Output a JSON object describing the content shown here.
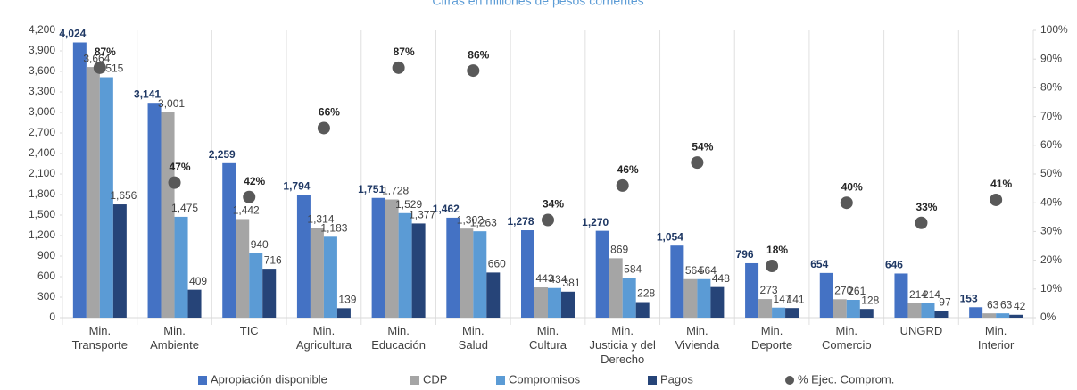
{
  "chart_data": {
    "type": "bar",
    "title": "Cifras en millones de pesos corrientes",
    "categories": [
      "Min.\nTransporte",
      "Min.\nAmbiente",
      "TIC",
      "Min.\nAgricultura",
      "Min.\nEducación",
      "Min.\nSalud",
      "Min.\nCultura",
      "Min.\nJusticia y del\nDerecho",
      "Min.\nVivienda",
      "Min.\nDeporte",
      "Min.\nComercio",
      "UNGRD",
      "Min.\nInterior"
    ],
    "series": [
      {
        "name": "Apropiación disponible",
        "color": "#4472c4",
        "values": [
          4024,
          3141,
          2259,
          1794,
          1751,
          1462,
          1278,
          1270,
          1054,
          796,
          654,
          646,
          153
        ],
        "value_labels": [
          "4,024",
          "3,141",
          "2,259",
          "1,794",
          "1,751",
          "1,462",
          "1,278",
          "1,270",
          "1,054",
          "796",
          "654",
          "646",
          "153"
        ]
      },
      {
        "name": "CDP",
        "color": "#a5a5a5",
        "values": [
          3664,
          3001,
          1442,
          1314,
          1728,
          1302,
          443,
          869,
          564,
          273,
          270,
          214,
          63
        ],
        "value_labels": [
          "3,664",
          "3,001",
          "1,442",
          "1,314",
          "1,728",
          "1,302",
          "443",
          "869",
          "564",
          "273",
          "270",
          "214",
          "63"
        ]
      },
      {
        "name": "Compromisos",
        "color": "#5b9bd5",
        "values": [
          3515,
          1475,
          940,
          1183,
          1529,
          1263,
          434,
          584,
          564,
          147,
          261,
          214,
          63
        ],
        "value_labels": [
          "3,515",
          "1,475",
          "940",
          "1,183",
          "1,529",
          "1,263",
          "434",
          "584",
          "564",
          "147",
          "261",
          "214",
          "63"
        ]
      },
      {
        "name": "Pagos",
        "color": "#264478",
        "values": [
          1656,
          409,
          716,
          139,
          1377,
          660,
          381,
          228,
          448,
          141,
          128,
          97,
          42
        ],
        "value_labels": [
          "1,656",
          "409",
          "716",
          "139",
          "1,377",
          "660",
          "381",
          "228",
          "448",
          "141",
          "128",
          "97",
          "42"
        ]
      },
      {
        "name": "% Ejec. Comprom.",
        "type": "scatter",
        "axis": "y2",
        "color": "#595959",
        "values": [
          87,
          47,
          42,
          66,
          87,
          86,
          34,
          46,
          54,
          18,
          40,
          33,
          41
        ],
        "value_labels": [
          "87%",
          "47%",
          "42%",
          "66%",
          "87%",
          "86%",
          "34%",
          "46%",
          "54%",
          "18%",
          "40%",
          "33%",
          "41%"
        ]
      }
    ],
    "ylim": [
      0,
      4200
    ],
    "yticks": [
      0,
      {
        "value": 300,
        "label": "300"
      },
      600,
      900,
      {
        "value": 1200,
        "label": "1,200"
      },
      {
        "value": 1500,
        "label": "1,500"
      },
      {
        "value": 1800,
        "label": "1,800"
      },
      {
        "value": 2100,
        "label": "2,100"
      },
      {
        "value": 2400,
        "label": "2,400"
      },
      {
        "value": 2700,
        "label": "2,700"
      },
      {
        "value": 3000,
        "label": "3,000"
      },
      {
        "value": 3300,
        "label": "3,300"
      },
      {
        "value": 3600,
        "label": "3,600"
      },
      {
        "value": 3900,
        "label": "3,900"
      },
      {
        "value": 4200,
        "label": "4,200"
      }
    ],
    "y2lim": [
      0,
      100
    ],
    "y2ticks": [
      {
        "value": 0,
        "label": "0%"
      },
      {
        "value": 10,
        "label": "10%"
      },
      {
        "value": 20,
        "label": "20%"
      },
      {
        "value": 30,
        "label": "30%"
      },
      {
        "value": 40,
        "label": "40%"
      },
      {
        "value": 50,
        "label": "50%"
      },
      {
        "value": 60,
        "label": "60%"
      },
      {
        "value": 70,
        "label": "70%"
      },
      {
        "value": 80,
        "label": "80%"
      },
      {
        "value": 90,
        "label": "90%"
      },
      {
        "value": 100,
        "label": "100%"
      }
    ],
    "legend": "bottom"
  }
}
